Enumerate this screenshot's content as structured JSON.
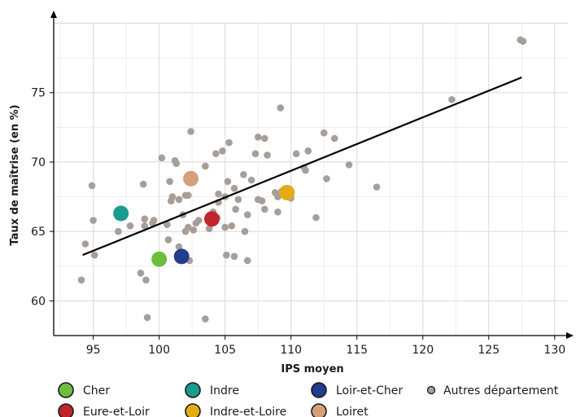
{
  "chart_data": {
    "type": "scatter",
    "title": "",
    "xlabel": "IPS moyen",
    "ylabel": "Taux de maîtrise (en %)",
    "xlim": [
      92,
      131
    ],
    "ylim": [
      57.5,
      80.5
    ],
    "xticks": [
      95,
      100,
      105,
      110,
      115,
      120,
      125,
      130
    ],
    "yticks": [
      60,
      65,
      70,
      75
    ],
    "grid": true,
    "legend_position": "bottom",
    "trendline": {
      "x": [
        94.2,
        127.5
      ],
      "y": [
        63.3,
        76.1
      ],
      "color": "#000000"
    },
    "highlighted": [
      {
        "name": "Cher",
        "x": 100.0,
        "y": 63.0,
        "color": "#6DBE3F"
      },
      {
        "name": "Indre",
        "x": 97.1,
        "y": 66.3,
        "color": "#1A9C8C"
      },
      {
        "name": "Loir-et-Cher",
        "x": 101.7,
        "y": 63.2,
        "color": "#223C8F"
      },
      {
        "name": "Eure-et-Loir",
        "x": 104.0,
        "y": 65.9,
        "color": "#C0262B"
      },
      {
        "name": "Indre-et-Loire",
        "x": 109.7,
        "y": 67.8,
        "color": "#E2AD12"
      },
      {
        "name": "Loiret",
        "x": 102.4,
        "y": 68.8,
        "color": "#D49F7A"
      }
    ],
    "others": {
      "name": "Autres département",
      "color": "#A89E98",
      "points": [
        [
          94.1,
          61.5
        ],
        [
          94.4,
          64.1
        ],
        [
          94.9,
          68.3
        ],
        [
          95.0,
          65.8
        ],
        [
          95.1,
          63.3
        ],
        [
          96.9,
          65.0
        ],
        [
          97.8,
          65.4
        ],
        [
          98.6,
          62.0
        ],
        [
          98.8,
          68.4
        ],
        [
          98.9,
          65.9
        ],
        [
          99.0,
          61.5
        ],
        [
          98.9,
          65.4
        ],
        [
          99.1,
          58.8
        ],
        [
          99.5,
          65.6
        ],
        [
          99.6,
          65.8
        ],
        [
          100.2,
          70.3
        ],
        [
          100.6,
          65.5
        ],
        [
          100.7,
          64.4
        ],
        [
          100.8,
          68.6
        ],
        [
          100.9,
          67.2
        ],
        [
          101.0,
          67.5
        ],
        [
          101.2,
          70.1
        ],
        [
          101.3,
          69.9
        ],
        [
          101.5,
          67.3
        ],
        [
          101.5,
          63.9
        ],
        [
          101.7,
          63.5
        ],
        [
          101.8,
          66.2
        ],
        [
          102.0,
          67.6
        ],
        [
          102.0,
          65.0
        ],
        [
          102.2,
          67.6
        ],
        [
          102.2,
          65.3
        ],
        [
          102.3,
          62.9
        ],
        [
          102.4,
          72.2
        ],
        [
          102.6,
          65.1
        ],
        [
          102.8,
          65.6
        ],
        [
          103.0,
          65.8
        ],
        [
          103.5,
          69.7
        ],
        [
          103.5,
          58.7
        ],
        [
          103.8,
          65.2
        ],
        [
          104.1,
          66.4
        ],
        [
          104.3,
          70.6
        ],
        [
          104.4,
          66.0
        ],
        [
          104.5,
          67.7
        ],
        [
          104.5,
          67.1
        ],
        [
          104.8,
          70.8
        ],
        [
          105.0,
          67.5
        ],
        [
          105.0,
          65.3
        ],
        [
          105.1,
          63.3
        ],
        [
          105.2,
          68.6
        ],
        [
          105.3,
          71.4
        ],
        [
          105.5,
          65.4
        ],
        [
          105.7,
          63.2
        ],
        [
          105.7,
          68.1
        ],
        [
          105.8,
          66.6
        ],
        [
          106.0,
          67.3
        ],
        [
          106.4,
          69.1
        ],
        [
          106.5,
          65.0
        ],
        [
          106.7,
          62.9
        ],
        [
          106.7,
          66.2
        ],
        [
          107.0,
          68.7
        ],
        [
          107.3,
          70.6
        ],
        [
          107.5,
          71.8
        ],
        [
          107.5,
          67.3
        ],
        [
          107.8,
          67.2
        ],
        [
          108.0,
          71.7
        ],
        [
          108.0,
          66.6
        ],
        [
          108.2,
          70.5
        ],
        [
          108.8,
          67.8
        ],
        [
          109.0,
          67.5
        ],
        [
          109.0,
          66.4
        ],
        [
          109.2,
          73.9
        ],
        [
          109.3,
          67.9
        ],
        [
          110.0,
          67.4
        ],
        [
          110.4,
          70.6
        ],
        [
          111.0,
          69.6
        ],
        [
          111.1,
          69.4
        ],
        [
          111.3,
          70.8
        ],
        [
          111.9,
          66.0
        ],
        [
          112.5,
          72.1
        ],
        [
          112.7,
          68.8
        ],
        [
          113.3,
          71.7
        ],
        [
          114.4,
          69.8
        ],
        [
          116.5,
          68.2
        ],
        [
          122.2,
          74.5
        ],
        [
          127.4,
          78.8
        ],
        [
          127.6,
          78.7
        ]
      ]
    }
  }
}
